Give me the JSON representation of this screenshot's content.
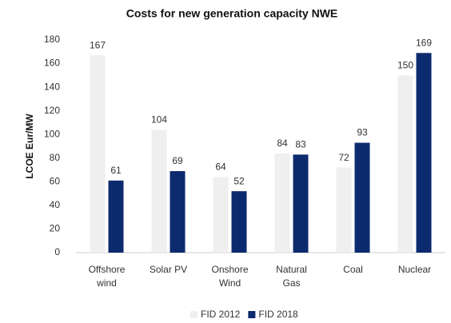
{
  "chart_data": {
    "type": "bar",
    "title": "Costs for new generation capacity NWE",
    "y_label": "LCOE Eur/MW",
    "categories": [
      "Offshore\nwind",
      "Solar PV",
      "Onshore\nWind",
      "Natural\nGas",
      "Coal",
      "Nuclear"
    ],
    "series": [
      {
        "name": "FID 2012",
        "color": "#efefef",
        "values": [
          167,
          104,
          64,
          84,
          72,
          150
        ]
      },
      {
        "name": "FID 2018",
        "color": "#0c2a6e",
        "values": [
          61,
          69,
          52,
          83,
          93,
          169
        ]
      }
    ],
    "ylim": [
      0,
      180
    ],
    "yticks": [
      0,
      20,
      40,
      60,
      80,
      100,
      120,
      140,
      160,
      180
    ],
    "grid": false,
    "legend": "bottom"
  }
}
